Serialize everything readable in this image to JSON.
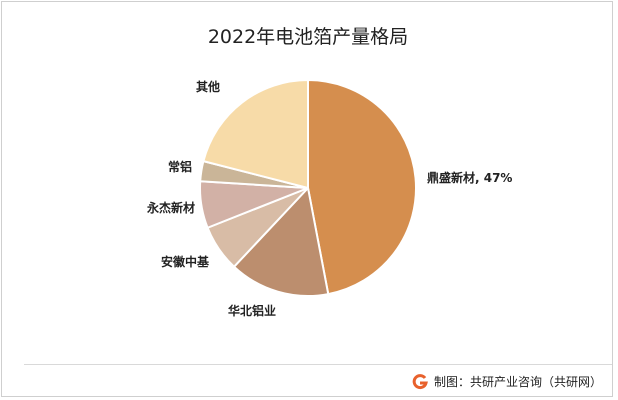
{
  "chart_data": {
    "type": "pie",
    "title": "2022年电池箔产量格局",
    "slices": [
      {
        "label": "鼎盛新材, 47%",
        "value": 47,
        "color": "#D58E4E"
      },
      {
        "label": "华北铝业",
        "value": 15,
        "color": "#BC8E6E"
      },
      {
        "label": "安徽中基",
        "value": 7,
        "color": "#D8BCA6"
      },
      {
        "label": "永杰新材",
        "value": 7,
        "color": "#D2B1A6"
      },
      {
        "label": "常铝",
        "value": 3,
        "color": "#CAB598"
      },
      {
        "label": "其他",
        "value": 21,
        "color": "#F7DBA8"
      }
    ],
    "start_angle": "12 o'clock",
    "direction": "clockwise"
  },
  "footer": {
    "source": "制图：共研产业咨询（共研网）",
    "logo_icon": "gonyn-logo-icon",
    "logo_color": "#E8612C"
  }
}
